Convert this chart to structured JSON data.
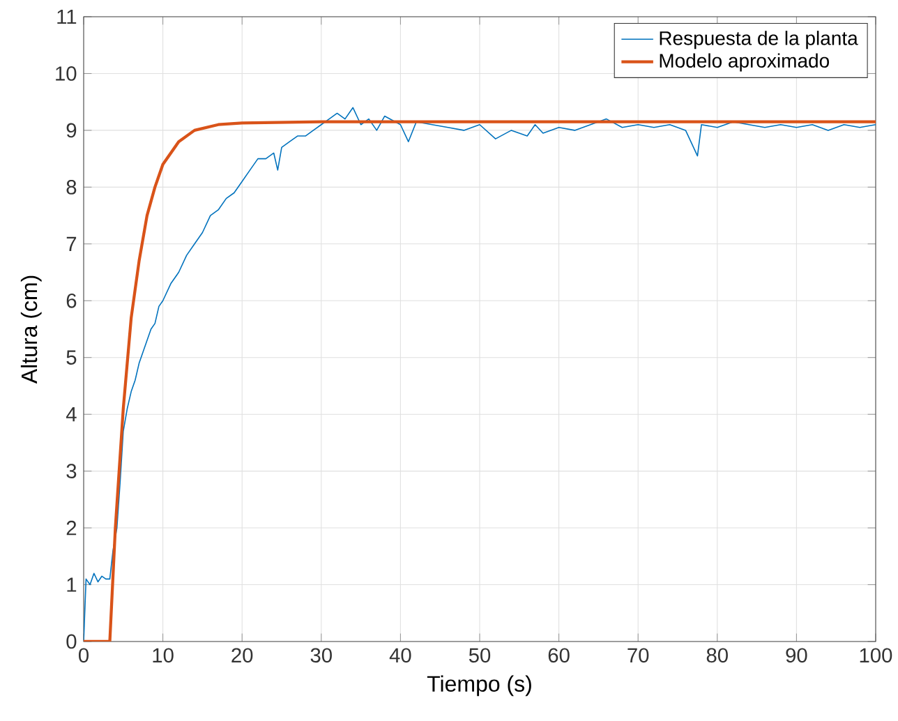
{
  "chart_data": {
    "type": "line",
    "xlabel": "Tiempo (s)",
    "ylabel": "Altura (cm)",
    "xlim": [
      0,
      100
    ],
    "ylim": [
      0,
      11
    ],
    "xticks": [
      0,
      10,
      20,
      30,
      40,
      50,
      60,
      70,
      80,
      90,
      100
    ],
    "yticks": [
      0,
      1,
      2,
      3,
      4,
      5,
      6,
      7,
      8,
      9,
      10,
      11
    ],
    "grid": true,
    "legend": "top right",
    "series": [
      {
        "name": "Respuesta de la planta",
        "color": "#0072bd",
        "x": [
          0,
          0.3,
          0.8,
          1.3,
          1.8,
          2.3,
          2.8,
          3.3,
          3.7,
          4.2,
          4.6,
          5,
          5.5,
          6,
          6.5,
          7,
          7.5,
          8,
          8.5,
          9,
          9.5,
          10,
          11,
          12,
          13,
          14,
          15,
          16,
          17,
          18,
          19,
          20,
          21,
          22,
          23,
          24,
          24.5,
          25,
          26,
          27,
          28,
          29,
          30,
          31,
          32,
          33,
          34,
          35,
          36,
          37,
          38,
          40,
          41,
          42,
          44,
          46,
          48,
          50,
          52,
          54,
          56,
          57,
          58,
          60,
          62,
          64,
          66,
          68,
          70,
          72,
          74,
          76,
          77.5,
          78,
          80,
          82,
          84,
          86,
          88,
          90,
          92,
          94,
          96,
          98,
          100
        ],
        "values": [
          0,
          1.1,
          1.0,
          1.2,
          1.05,
          1.15,
          1.1,
          1.1,
          1.6,
          2.0,
          2.8,
          3.7,
          4.1,
          4.4,
          4.6,
          4.9,
          5.1,
          5.3,
          5.5,
          5.6,
          5.9,
          6.0,
          6.3,
          6.5,
          6.8,
          7.0,
          7.2,
          7.5,
          7.6,
          7.8,
          7.9,
          8.1,
          8.3,
          8.5,
          8.5,
          8.6,
          8.3,
          8.7,
          8.8,
          8.9,
          8.9,
          9.0,
          9.1,
          9.2,
          9.3,
          9.2,
          9.4,
          9.1,
          9.2,
          9.0,
          9.25,
          9.1,
          8.8,
          9.15,
          9.1,
          9.05,
          9.0,
          9.1,
          8.85,
          9.0,
          8.9,
          9.1,
          8.95,
          9.05,
          9.0,
          9.1,
          9.2,
          9.05,
          9.1,
          9.05,
          9.1,
          9.0,
          8.55,
          9.1,
          9.05,
          9.15,
          9.1,
          9.05,
          9.1,
          9.05,
          9.1,
          9.0,
          9.1,
          9.05,
          9.1
        ]
      },
      {
        "name": "Modelo aproximado",
        "color": "#d95319",
        "x": [
          0,
          3.3,
          4,
          5,
          6,
          7,
          8,
          9,
          10,
          12,
          14,
          17,
          20,
          30,
          100
        ],
        "values": [
          0,
          0,
          2.0,
          4.1,
          5.7,
          6.7,
          7.5,
          8.0,
          8.4,
          8.8,
          9.0,
          9.1,
          9.13,
          9.15,
          9.15
        ]
      }
    ]
  }
}
